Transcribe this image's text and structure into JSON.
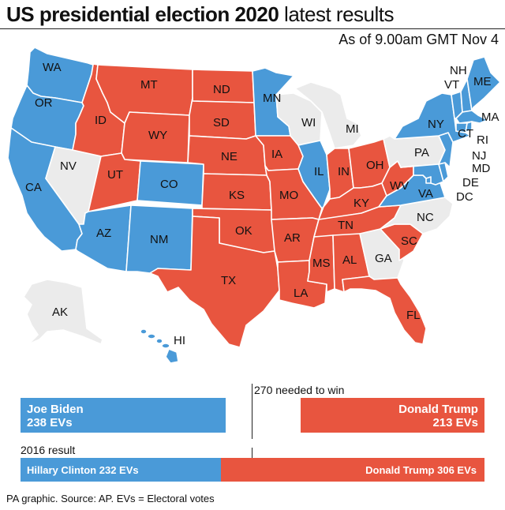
{
  "title": {
    "bold": "US presidential election 2020",
    "light": "latest results"
  },
  "as_of": "As of 9.00am GMT Nov 4",
  "colors": {
    "dem": "#4a9ad8",
    "rep": "#e8553f",
    "undecided": "#ebebeb"
  },
  "states": {
    "WA": "dem",
    "OR": "dem",
    "CA": "dem",
    "NV": "undecided",
    "ID": "rep",
    "MT": "rep",
    "WY": "rep",
    "UT": "rep",
    "AZ": "dem",
    "CO": "dem",
    "NM": "dem",
    "ND": "rep",
    "SD": "rep",
    "NE": "rep",
    "KS": "rep",
    "OK": "rep",
    "TX": "rep",
    "MN": "dem",
    "IA": "rep",
    "MO": "rep",
    "AR": "rep",
    "LA": "rep",
    "WI": "undecided",
    "IL": "dem",
    "MI": "undecided",
    "IN": "rep",
    "OH": "rep",
    "KY": "rep",
    "TN": "rep",
    "MS": "rep",
    "AL": "rep",
    "GA": "undecided",
    "FL": "rep",
    "SC": "rep",
    "NC": "undecided",
    "VA": "dem",
    "WV": "rep",
    "PA": "undecided",
    "NY": "dem",
    "ME": "dem",
    "NH": "dem",
    "VT": "dem",
    "MA": "dem",
    "CT": "dem",
    "RI": "dem",
    "NJ": "dem",
    "DE": "dem",
    "MD": "dem",
    "DC": "dem",
    "AK": "undecided",
    "HI": "dem"
  },
  "state_labels": {
    "WA": "WA",
    "OR": "OR",
    "CA": "CA",
    "NV": "NV",
    "ID": "ID",
    "MT": "MT",
    "WY": "WY",
    "UT": "UT",
    "AZ": "AZ",
    "CO": "CO",
    "NM": "NM",
    "ND": "ND",
    "SD": "SD",
    "NE": "NE",
    "KS": "KS",
    "OK": "OK",
    "TX": "TX",
    "MN": "MN",
    "IA": "IA",
    "MO": "MO",
    "AR": "AR",
    "LA": "LA",
    "WI": "WI",
    "IL": "IL",
    "MI": "MI",
    "IN": "IN",
    "OH": "OH",
    "KY": "KY",
    "TN": "TN",
    "MS": "MS",
    "AL": "AL",
    "GA": "GA",
    "FL": "FL",
    "SC": "SC",
    "NC": "NC",
    "VA": "VA",
    "WV": "WV",
    "PA": "PA",
    "NY": "NY",
    "ME": "ME",
    "NH": "NH",
    "VT": "VT",
    "MA": "MA",
    "CT": "CT",
    "RI": "RI",
    "NJ": "NJ",
    "DE": "DE",
    "MD": "MD",
    "DC": "DC",
    "AK": "AK",
    "HI": "HI"
  },
  "results_2020": {
    "needed_label": "270 needed to win",
    "total_ev": 538,
    "needed": 270,
    "biden": {
      "name": "Joe Biden",
      "ev_label": "238 EVs",
      "ev": 238
    },
    "trump": {
      "name": "Donald Trump",
      "ev_label": "213 EVs",
      "ev": 213
    }
  },
  "results_2016": {
    "label": "2016 result",
    "clinton": {
      "text": "Hillary Clinton 232 EVs",
      "ev": 232
    },
    "trump": {
      "text": "Donald Trump 306 EVs",
      "ev": 306
    }
  },
  "source": "PA graphic. Source: AP. EVs = Electoral votes"
}
